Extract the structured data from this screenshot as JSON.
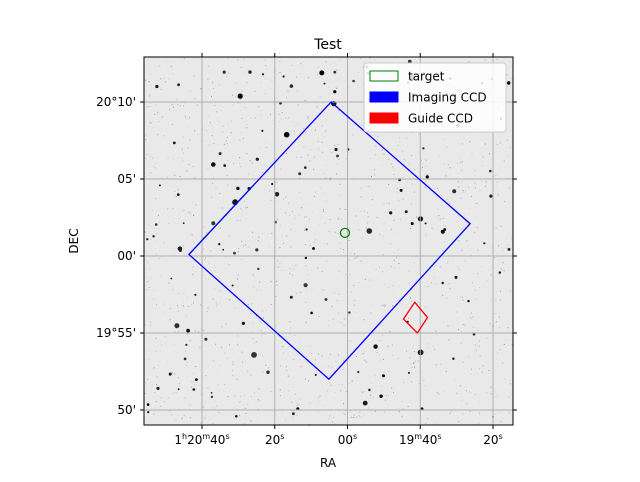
{
  "chart_data": {
    "type": "scatter",
    "title": "Test",
    "xlabel": "RA",
    "ylabel": "DEC",
    "grid": true,
    "legend_placement": "top-right",
    "x_axis": {
      "direction": "RA increases to the left",
      "ticks": [
        {
          "ra_sec": 100,
          "label": "1h20m40s",
          "parts": [
            [
              "1",
              ""
            ],
            [
              "h",
              "sup"
            ],
            [
              "20",
              ""
            ],
            [
              "m",
              "sup"
            ],
            [
              "40",
              ""
            ],
            [
              "s",
              "sup"
            ]
          ]
        },
        {
          "ra_sec": 80,
          "label": "20s",
          "parts": [
            [
              "20",
              ""
            ],
            [
              "s",
              "sup"
            ]
          ]
        },
        {
          "ra_sec": 60,
          "label": "00s",
          "parts": [
            [
              "00",
              ""
            ],
            [
              "s",
              "sup"
            ]
          ]
        },
        {
          "ra_sec": 40,
          "label": "19m40s",
          "parts": [
            [
              "19",
              ""
            ],
            [
              "m",
              "sup"
            ],
            [
              "40",
              ""
            ],
            [
              "s",
              "sup"
            ]
          ]
        },
        {
          "ra_sec": 20,
          "label": "20s",
          "parts": [
            [
              "20",
              ""
            ],
            [
              "s",
              "sup"
            ]
          ]
        }
      ]
    },
    "y_axis": {
      "ticks": [
        {
          "dec_min": 10,
          "label": "20°10'"
        },
        {
          "dec_min": 5,
          "label": "05'"
        },
        {
          "dec_min": 0,
          "label": "00'"
        },
        {
          "dec_min": -5,
          "label": "19°55'"
        },
        {
          "dec_min": -10,
          "label": "50'"
        }
      ]
    },
    "legend": [
      {
        "label": "target",
        "style": "outline",
        "color": "#008000"
      },
      {
        "label": "Imaging CCD",
        "style": "filled",
        "color": "#0000ff"
      },
      {
        "label": "Guide CCD",
        "style": "filled",
        "color": "#ff0000"
      }
    ],
    "series": [
      {
        "name": "target",
        "kind": "circle",
        "color": "#008000",
        "center": {
          "ra_sec": 60.7,
          "dec_min": 1.5
        }
      },
      {
        "name": "Imaging CCD",
        "kind": "polygon",
        "color": "#0000ff",
        "points": [
          {
            "ra_sec": 64.5,
            "dec_min": 10.0
          },
          {
            "ra_sec": 26.3,
            "dec_min": 2.1
          },
          {
            "ra_sec": 65.1,
            "dec_min": -8.0
          },
          {
            "ra_sec": 103.6,
            "dec_min": 0.1
          }
        ]
      },
      {
        "name": "Guide CCD",
        "kind": "polygon",
        "color": "#ff0000",
        "points": [
          {
            "ra_sec": 41.5,
            "dec_min": -3.0
          },
          {
            "ra_sec": 44.6,
            "dec_min": -4.1
          },
          {
            "ra_sec": 40.8,
            "dec_min": -5.0
          },
          {
            "ra_sec": 38.0,
            "dec_min": -4.0
          }
        ]
      }
    ]
  }
}
